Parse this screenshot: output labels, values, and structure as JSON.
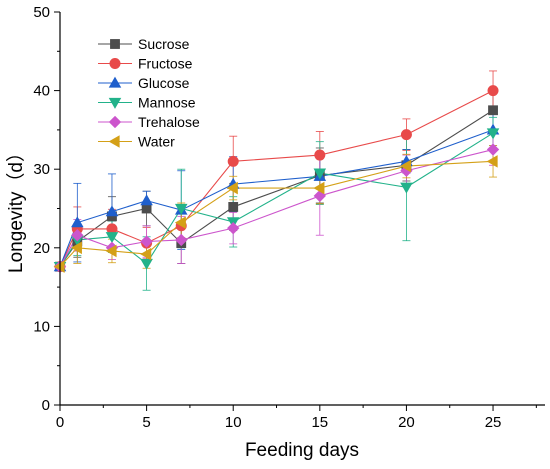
{
  "chart_data": {
    "type": "line",
    "xlabel": "Feeding days",
    "ylabel": "Longevity（d）",
    "xlim": [
      0,
      28
    ],
    "ylim": [
      0,
      50
    ],
    "xticks": [
      0,
      5,
      10,
      15,
      20,
      25
    ],
    "yticks": [
      0,
      10,
      20,
      30,
      40,
      50
    ],
    "grid": false,
    "legend_position": "top-left",
    "x": [
      0,
      1,
      3,
      5,
      7,
      10,
      15,
      20,
      25
    ],
    "series": [
      {
        "name": "Sucrose",
        "marker": "square",
        "color": "#4d4d4d",
        "values": [
          17.6,
          20.8,
          24.0,
          25.0,
          20.6,
          25.2,
          29.2,
          30.5,
          37.5
        ],
        "errors": [
          0.4,
          2.0,
          2.5,
          2.2,
          2.6,
          3.0,
          3.5,
          2.0,
          2.5
        ]
      },
      {
        "name": "Fructose",
        "marker": "circle",
        "color": "#e84a4a",
        "values": [
          17.6,
          22.4,
          22.4,
          20.6,
          22.8,
          31.0,
          31.8,
          34.4,
          40.0
        ],
        "errors": [
          0.4,
          2.8,
          2.5,
          2.0,
          1.5,
          3.2,
          3.0,
          2.0,
          2.5
        ]
      },
      {
        "name": "Glucose",
        "marker": "triangle-up",
        "color": "#1f5fcc",
        "values": [
          17.6,
          23.2,
          24.6,
          26.0,
          24.8,
          28.1,
          29.1,
          31.0,
          35.0
        ],
        "errors": [
          0.4,
          5.0,
          4.8,
          1.2,
          5.0,
          3.5,
          2.5,
          1.5,
          2.0
        ]
      },
      {
        "name": "Mannose",
        "marker": "triangle-down",
        "color": "#22b28a",
        "values": [
          17.6,
          21.0,
          21.4,
          18.0,
          25.0,
          23.3,
          29.5,
          27.7,
          34.6
        ],
        "errors": [
          0.4,
          2.0,
          2.0,
          3.4,
          5.0,
          3.2,
          4.0,
          6.8,
          2.0
        ]
      },
      {
        "name": "Trehalose",
        "marker": "diamond",
        "color": "#cc55cc",
        "values": [
          17.6,
          21.6,
          20.0,
          20.8,
          21.0,
          22.5,
          26.6,
          29.8,
          32.5
        ],
        "errors": [
          0.4,
          2.0,
          1.5,
          2.0,
          3.0,
          2.0,
          5.0,
          2.0,
          2.0
        ]
      },
      {
        "name": "Water",
        "marker": "triangle-left",
        "color": "#d4a017",
        "values": [
          17.6,
          20.0,
          19.6,
          19.2,
          23.2,
          27.6,
          27.6,
          30.4,
          31.0
        ],
        "errors": [
          0.4,
          2.0,
          1.5,
          1.8,
          2.5,
          1.5,
          2.0,
          1.5,
          2.0
        ]
      }
    ]
  }
}
